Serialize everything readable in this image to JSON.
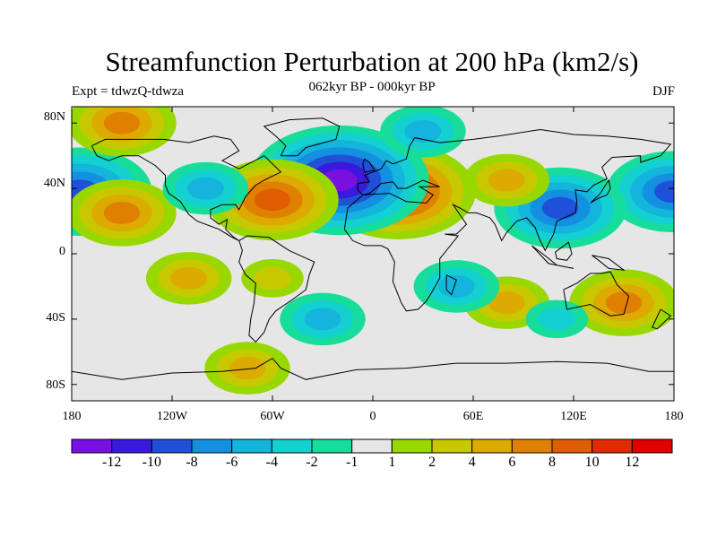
{
  "title": "Streamfunction Perturbation at 200 hPa (km2/s)",
  "subtitle": "062kyr BP - 000kyr BP",
  "left_label": "Expt = tdwzQ-tdwza",
  "right_label": "DJF",
  "y_ticks": [
    "80N",
    "40N",
    "0",
    "40S",
    "80S"
  ],
  "x_ticks": [
    "180",
    "120W",
    "60W",
    "0",
    "60E",
    "120E",
    "180"
  ],
  "colorbar": {
    "colors": [
      "#7a10e0",
      "#3a18dc",
      "#1e50d8",
      "#1590e0",
      "#14b4dc",
      "#14d0d0",
      "#18dc9c",
      "#e6e6e6",
      "#98d800",
      "#c8c800",
      "#dcaa00",
      "#e08000",
      "#e05c00",
      "#e02c00",
      "#e00000"
    ],
    "labels": [
      "-12",
      "-10",
      "-8",
      "-6",
      "-4",
      "-2",
      "-1",
      "1",
      "2",
      "4",
      "6",
      "8",
      "10",
      "12"
    ]
  },
  "chart_data": {
    "type": "heatmap",
    "title": "Streamfunction Perturbation at 200 hPa (km2/s)",
    "subtitle": "062kyr BP - 000kyr BP",
    "xlim": [
      -180,
      180
    ],
    "ylim": [
      -90,
      90
    ],
    "x_ticks": [
      "180",
      "120W",
      "60W",
      "0",
      "60E",
      "120E",
      "180"
    ],
    "y_ticks": [
      "80N",
      "40N",
      "0",
      "40S",
      "80S"
    ],
    "contour_levels": [
      -12,
      -10,
      -8,
      -6,
      -4,
      -2,
      -1,
      1,
      2,
      4,
      6,
      8,
      10,
      12
    ],
    "features": [
      {
        "lon": 15,
        "lat": 38,
        "value": 10
      },
      {
        "lon": -20,
        "lat": 45,
        "value": -12
      },
      {
        "lon": -60,
        "lat": 33,
        "value": 8
      },
      {
        "lon": -175,
        "lat": 38,
        "value": -9
      },
      {
        "lon": 179,
        "lat": 38,
        "value": -8
      },
      {
        "lon": 112,
        "lat": 28,
        "value": -8
      },
      {
        "lon": -150,
        "lat": 25,
        "value": 6
      },
      {
        "lon": 150,
        "lat": -30,
        "value": 6
      },
      {
        "lon": -150,
        "lat": 80,
        "value": 6
      },
      {
        "lon": -110,
        "lat": -15,
        "value": 4
      },
      {
        "lon": -75,
        "lat": -70,
        "value": 4
      },
      {
        "lon": 80,
        "lat": -30,
        "value": 4
      },
      {
        "lon": 80,
        "lat": 45,
        "value": 4
      },
      {
        "lon": -60,
        "lat": -15,
        "value": 2
      },
      {
        "lon": -30,
        "lat": -40,
        "value": -4
      },
      {
        "lon": 50,
        "lat": -20,
        "value": -4
      },
      {
        "lon": 30,
        "lat": 75,
        "value": -4
      },
      {
        "lon": -100,
        "lat": 40,
        "value": -4
      },
      {
        "lon": 110,
        "lat": -40,
        "value": -2
      }
    ]
  }
}
